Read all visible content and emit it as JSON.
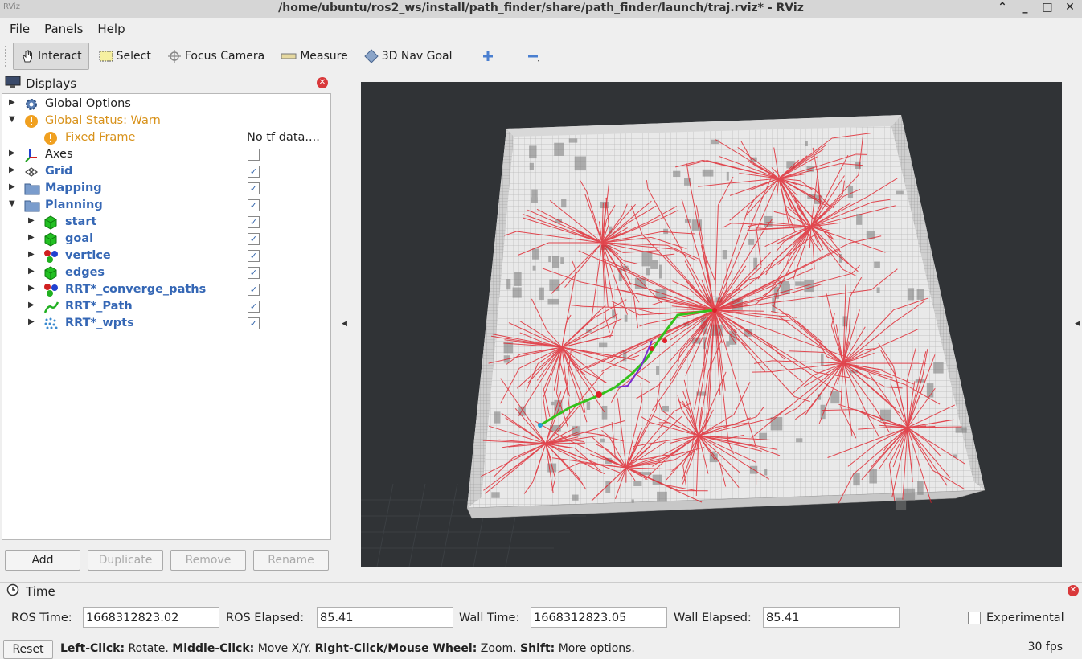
{
  "window": {
    "title": "/home/ubuntu/ros2_ws/install/path_finder/share/path_finder/launch/traj.rviz* - RViz",
    "app_icon": "RViz"
  },
  "menu": [
    {
      "label": "File"
    },
    {
      "label": "Panels"
    },
    {
      "label": "Help"
    }
  ],
  "toolbar": {
    "interact": "Interact",
    "select": "Select",
    "focus_camera": "Focus Camera",
    "measure": "Measure",
    "nav_goal": "3D Nav Goal"
  },
  "displays": {
    "title": "Displays",
    "items": [
      {
        "label": "Global Options",
        "icon": "gear-icon"
      },
      {
        "label": "Global Status: Warn",
        "icon": "warning-icon"
      },
      {
        "label": "Fixed Frame",
        "value": "No tf data....",
        "icon": "warning-icon"
      },
      {
        "label": "Axes",
        "icon": "axes-icon",
        "checked": false
      },
      {
        "label": "Grid",
        "icon": "grid-icon",
        "checked": true
      },
      {
        "label": "Mapping",
        "icon": "folder-icon",
        "checked": true
      },
      {
        "label": "Planning",
        "icon": "folder-icon",
        "checked": true
      },
      {
        "label": "start",
        "icon": "cube-icon",
        "checked": true
      },
      {
        "label": "goal",
        "icon": "cube-icon",
        "checked": true
      },
      {
        "label": "vertice",
        "icon": "spheres-icon",
        "checked": true
      },
      {
        "label": "edges",
        "icon": "cube-icon",
        "checked": true
      },
      {
        "label": "RRT*_converge_paths",
        "icon": "spheres-icon",
        "checked": true
      },
      {
        "label": "RRT*_Path",
        "icon": "path-icon",
        "checked": true
      },
      {
        "label": "RRT*_wpts",
        "icon": "points-icon",
        "checked": true
      }
    ],
    "buttons": {
      "add": "Add",
      "duplicate": "Duplicate",
      "remove": "Remove",
      "rename": "Rename"
    }
  },
  "time": {
    "title": "Time",
    "ros_time_label": "ROS Time:",
    "ros_time": "1668312823.02",
    "ros_elapsed_label": "ROS Elapsed:",
    "ros_elapsed": "85.41",
    "wall_time_label": "Wall Time:",
    "wall_time": "1668312823.05",
    "wall_elapsed_label": "Wall Elapsed:",
    "wall_elapsed": "85.41",
    "experimental": "Experimental"
  },
  "status": {
    "reset": "Reset",
    "hint_left_key": "Left-Click:",
    "hint_left": " Rotate. ",
    "hint_middle_key": "Middle-Click:",
    "hint_middle": " Move X/Y. ",
    "hint_right_key": "Right-Click/Mouse Wheel:",
    "hint_right": " Zoom. ",
    "hint_shift_key": "Shift:",
    "hint_shift": " More options.",
    "fps": "30 fps"
  },
  "colors": {
    "accent_blue": "#3567b5",
    "warn_orange": "#d8921b",
    "viewport_bg": "#303336",
    "path_green": "#34c21c",
    "edge_red": "#e0202a"
  }
}
